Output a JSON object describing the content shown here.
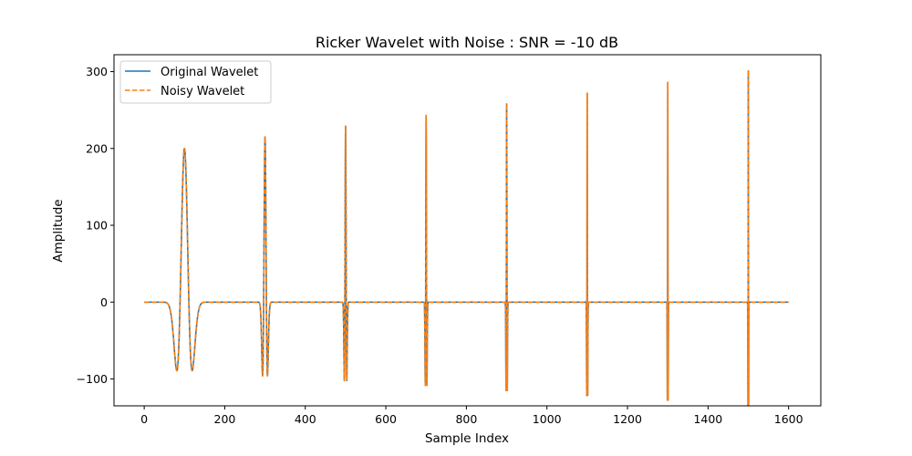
{
  "chart_data": {
    "type": "line",
    "title": "Ricker Wavelet with Noise : SNR = -10 dB",
    "xlabel": "Sample Index",
    "ylabel": "Amplitude",
    "xlim": [
      -75,
      1680
    ],
    "ylim": [
      -135,
      322
    ],
    "xticks": [
      0,
      200,
      400,
      600,
      800,
      1000,
      1200,
      1400,
      1600
    ],
    "yticks": [
      -100,
      0,
      100,
      200,
      300
    ],
    "xtick_labels": [
      "0",
      "200",
      "400",
      "600",
      "800",
      "1000",
      "1200",
      "1400",
      "1600"
    ],
    "ytick_labels": [
      "−100",
      "0",
      "100",
      "200",
      "300"
    ],
    "grid": false,
    "legend_position": "top-left",
    "x_range": [
      0,
      1600
    ],
    "wavelets": [
      {
        "center": 100,
        "amplitude": 200,
        "trough": -88,
        "trough_offset": 19
      },
      {
        "center": 300,
        "amplitude": 215,
        "trough": -92,
        "trough_offset": 6
      },
      {
        "center": 500,
        "amplitude": 229,
        "trough": -101,
        "trough_offset": 3
      },
      {
        "center": 700,
        "amplitude": 243,
        "trough": -105,
        "trough_offset": 2
      },
      {
        "center": 900,
        "amplitude": 258,
        "trough": -111,
        "trough_offset": 1.5
      },
      {
        "center": 1100,
        "amplitude": 272,
        "trough": -114,
        "trough_offset": 1.2
      },
      {
        "center": 1300,
        "amplitude": 286,
        "trough": -85,
        "trough_offset": 1
      },
      {
        "center": 1500,
        "amplitude": 301,
        "trough": -96,
        "trough_offset": 0.8
      }
    ],
    "series": [
      {
        "name": "Original Wavelet",
        "color": "#1f77b4",
        "style": "solid"
      },
      {
        "name": "Noisy Wavelet",
        "color": "#ff7f0e",
        "style": "dashed"
      }
    ]
  }
}
